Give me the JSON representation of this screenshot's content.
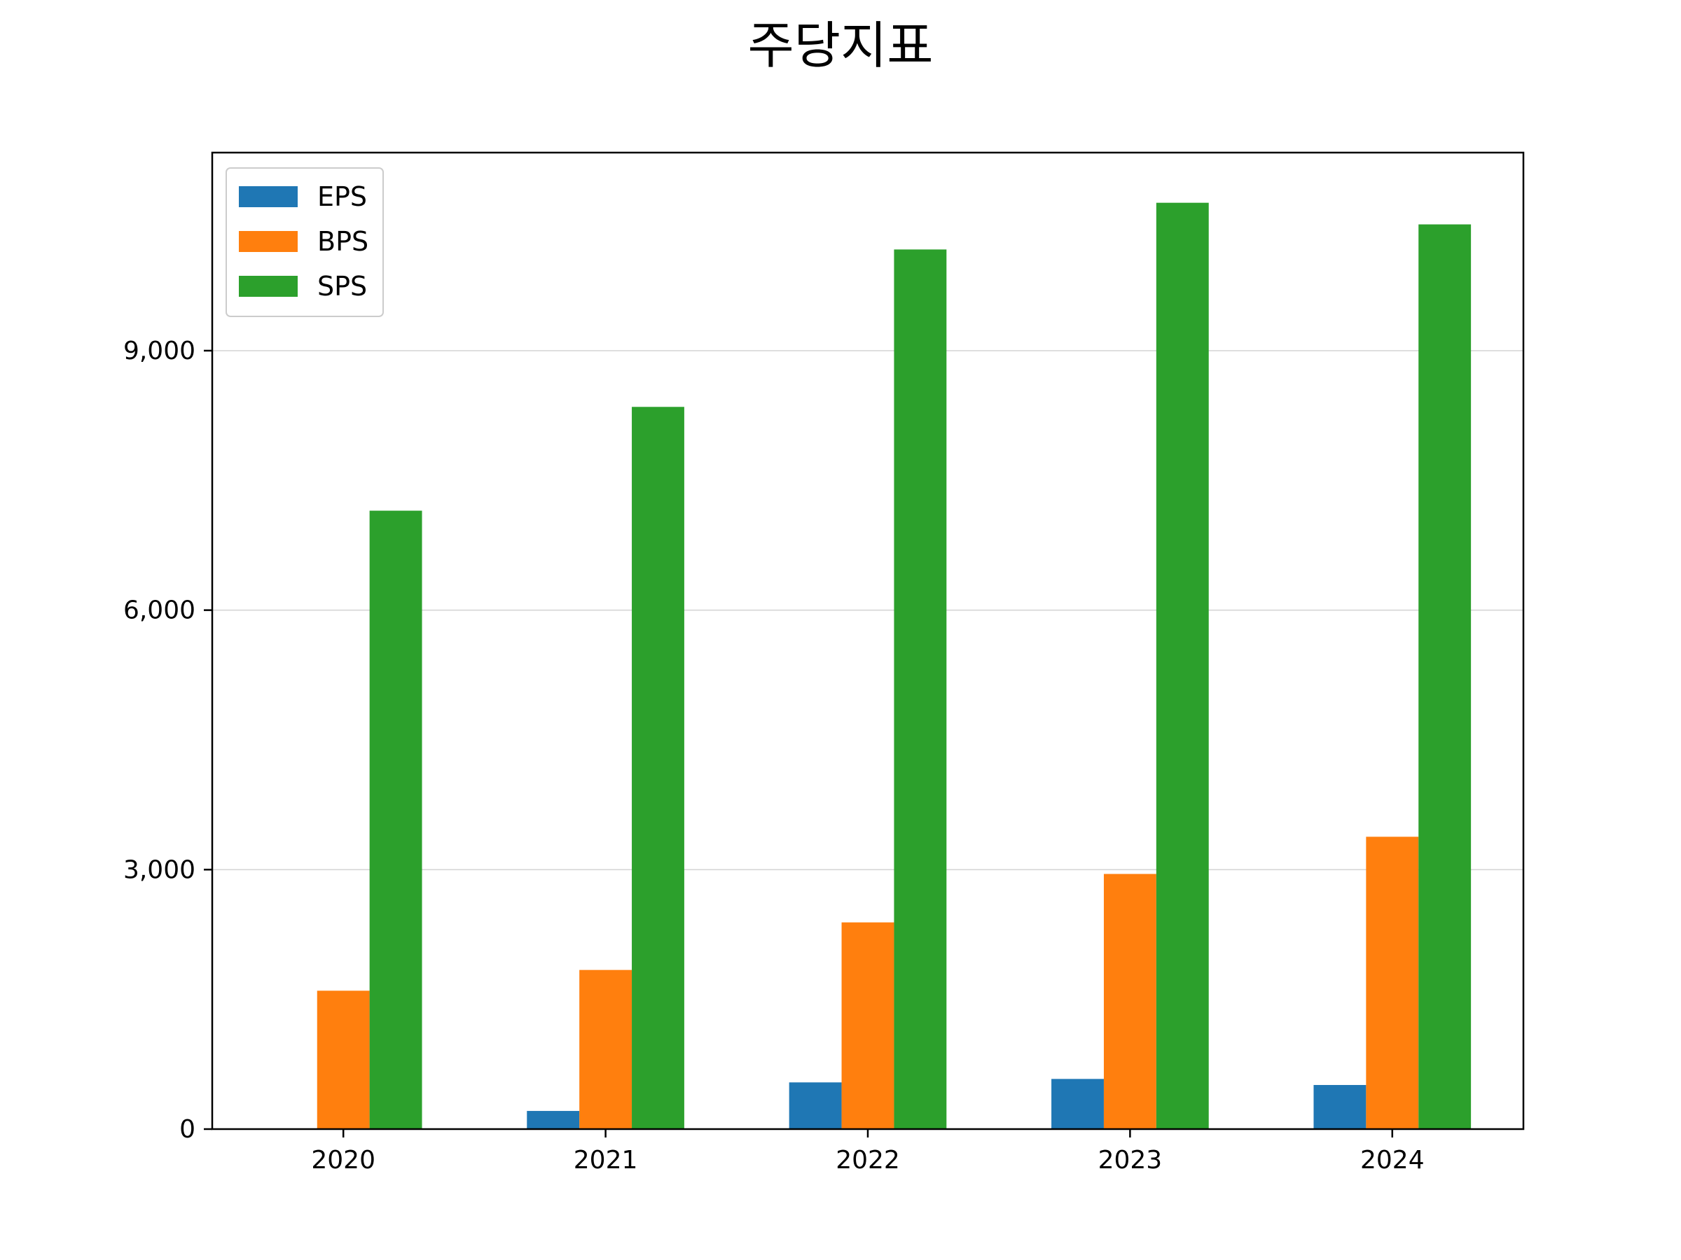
{
  "chart_data": {
    "type": "bar",
    "title": "주당지표",
    "xlabel": "",
    "ylabel": "",
    "categories": [
      "2020",
      "2021",
      "2022",
      "2023",
      "2024"
    ],
    "series": [
      {
        "name": "EPS",
        "color": "#1f77b4",
        "values": [
          0,
          210,
          540,
          580,
          510
        ]
      },
      {
        "name": "BPS",
        "color": "#ff7f0e",
        "values": [
          1600,
          1840,
          2390,
          2950,
          3380
        ]
      },
      {
        "name": "SPS",
        "color": "#2ca02c",
        "values": [
          7150,
          8350,
          10170,
          10710,
          10460
        ]
      }
    ],
    "ylim": [
      0,
      11290
    ],
    "yticks": [
      0,
      3000,
      6000,
      9000
    ],
    "ytick_labels": [
      "0",
      "3,000",
      "6,000",
      "9,000"
    ],
    "grid": "y",
    "legend_position": "top-left"
  }
}
